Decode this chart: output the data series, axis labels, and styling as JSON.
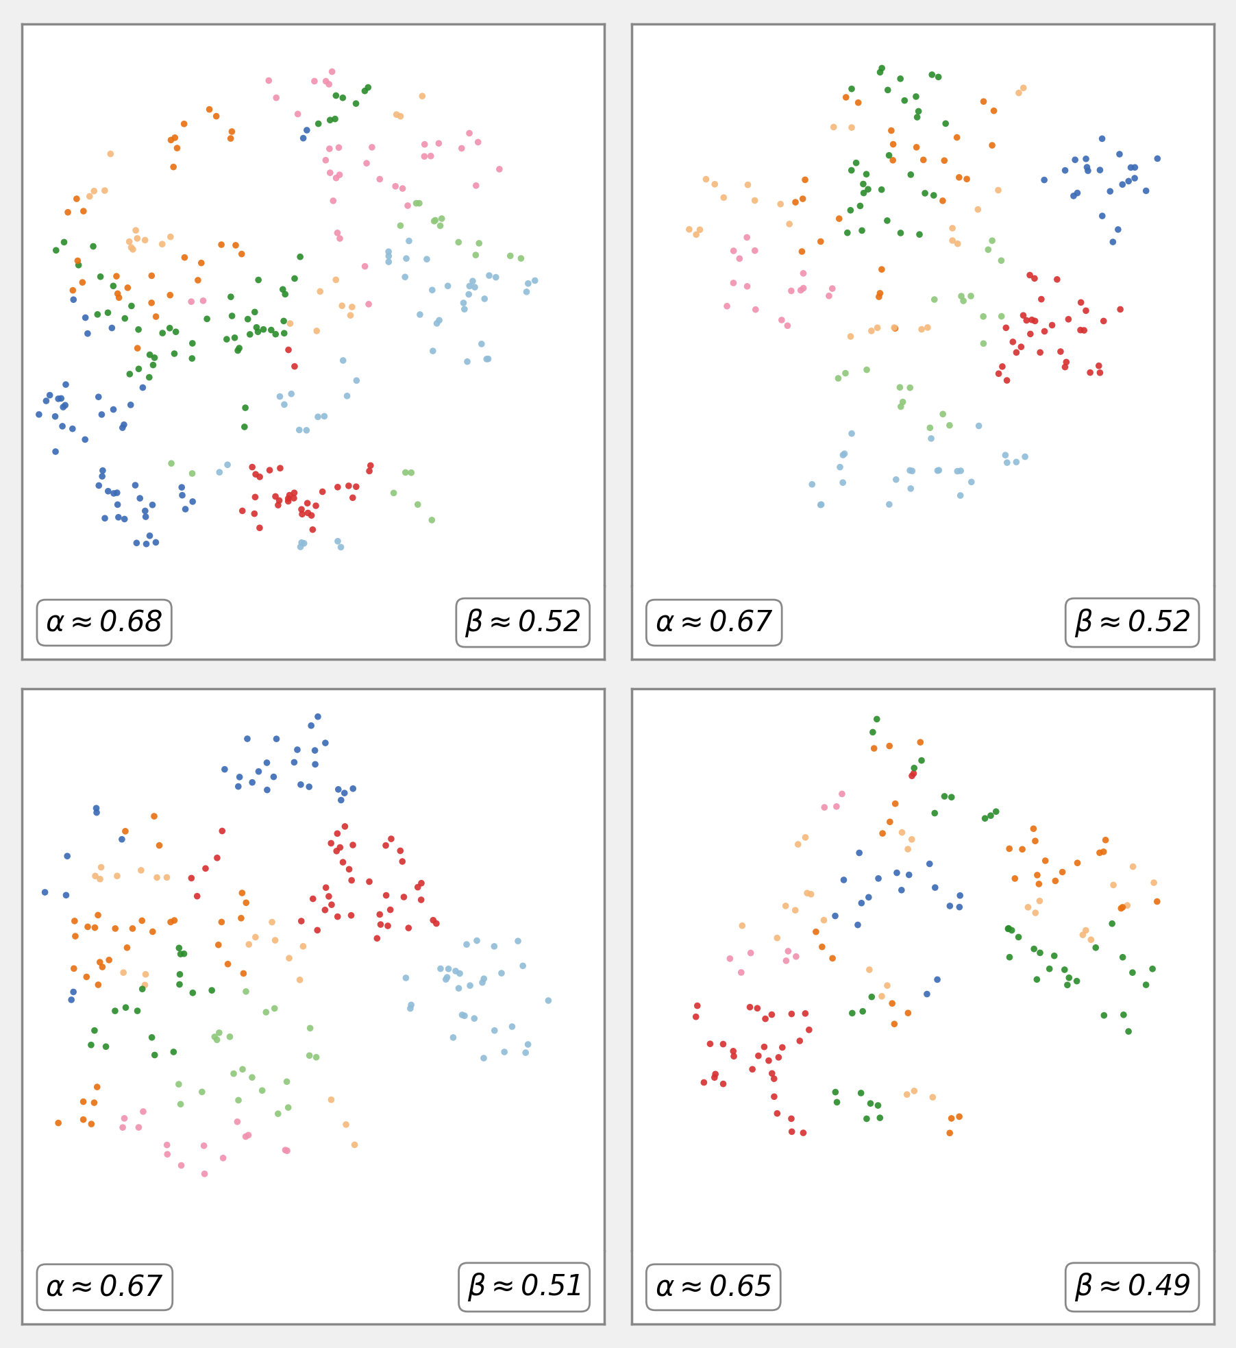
{
  "panels": [
    {
      "alpha": "0.68",
      "beta": "0.52"
    },
    {
      "alpha": "0.67",
      "beta": "0.52"
    },
    {
      "alpha": "0.67",
      "beta": "0.51"
    },
    {
      "alpha": "0.65",
      "beta": "0.49"
    }
  ],
  "colors": {
    "blue": "#3a6bb5",
    "red": "#d63030",
    "green": "#2a8c2a",
    "orange": "#e87010",
    "peach": "#f5b87a",
    "light_blue": "#90bcd8",
    "light_green": "#8ec87a",
    "pink": "#f090b0",
    "yellow_green": "#c0d858",
    "dark_orange": "#f07030"
  },
  "background": "#ffffff",
  "border_color": "#888888",
  "label_fontsize": 30,
  "figsize": [
    18.04,
    19.67
  ],
  "dpi": 100,
  "dot_size": 48,
  "dot_alpha": 0.9
}
